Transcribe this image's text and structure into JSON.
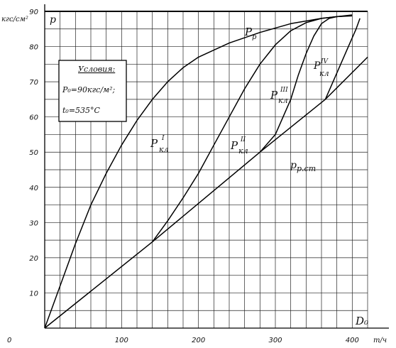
{
  "chart_data": {
    "type": "line",
    "grid": true,
    "xlim": [
      0,
      420
    ],
    "ylim": [
      0,
      90
    ],
    "xlabel": "D₀",
    "x_unit": "т/ч",
    "ylabel": "p",
    "y_unit": "кгс/см²",
    "x_ticks": [
      "0",
      "100",
      "200",
      "300",
      "400"
    ],
    "y_ticks": [
      "10",
      "20",
      "30",
      "40",
      "50",
      "60",
      "70",
      "80",
      "90"
    ],
    "conditions": {
      "title": "Условия:",
      "line1": "P₀=90кгс/м²;",
      "line2": "t₀=535°C"
    },
    "series": [
      {
        "name": "p_p",
        "label_main": "P",
        "label_sub": "р",
        "points": [
          [
            0,
            90
          ],
          [
            420,
            90
          ]
        ]
      },
      {
        "name": "p_кл I",
        "label_main": "P",
        "label_sub": "кл",
        "label_sup": "I",
        "points": [
          [
            0,
            0
          ],
          [
            20,
            12
          ],
          [
            40,
            24
          ],
          [
            60,
            35
          ],
          [
            80,
            44
          ],
          [
            100,
            52
          ],
          [
            120,
            59
          ],
          [
            140,
            65
          ],
          [
            160,
            70
          ],
          [
            180,
            74
          ],
          [
            200,
            77
          ],
          [
            240,
            81
          ],
          [
            280,
            84
          ],
          [
            320,
            86.5
          ],
          [
            360,
            88
          ],
          [
            400,
            89
          ]
        ]
      },
      {
        "name": "p_кл II",
        "label_main": "P",
        "label_sub": "кл",
        "label_sup": "II",
        "points": [
          [
            140,
            24.5
          ],
          [
            160,
            30.5
          ],
          [
            180,
            37
          ],
          [
            200,
            44
          ],
          [
            220,
            52
          ],
          [
            240,
            60
          ],
          [
            260,
            68
          ],
          [
            280,
            75
          ],
          [
            300,
            80.5
          ],
          [
            320,
            84.5
          ],
          [
            340,
            86.8
          ],
          [
            360,
            88
          ],
          [
            380,
            88.5
          ],
          [
            400,
            88.8
          ]
        ]
      },
      {
        "name": "p_кл III",
        "label_main": "P",
        "label_sub": "кл",
        "label_sup": "III",
        "points": [
          [
            280,
            50
          ],
          [
            300,
            55
          ],
          [
            320,
            65
          ],
          [
            330,
            72
          ],
          [
            340,
            78
          ],
          [
            350,
            83
          ],
          [
            360,
            86.5
          ],
          [
            370,
            88
          ],
          [
            380,
            88.5
          ],
          [
            400,
            88.7
          ]
        ]
      },
      {
        "name": "p_кл IV",
        "label_main": "P",
        "label_sub": "кл",
        "label_sup": "IV",
        "points": [
          [
            365,
            65
          ],
          [
            375,
            70
          ],
          [
            385,
            75
          ],
          [
            395,
            80
          ],
          [
            405,
            85
          ],
          [
            410,
            88
          ]
        ]
      },
      {
        "name": "p_p.cm",
        "label_main": "p",
        "label_sub": "р.ст",
        "points": [
          [
            0,
            0
          ],
          [
            140,
            24.5
          ],
          [
            280,
            50
          ],
          [
            365,
            65
          ],
          [
            420,
            77
          ]
        ]
      }
    ]
  }
}
